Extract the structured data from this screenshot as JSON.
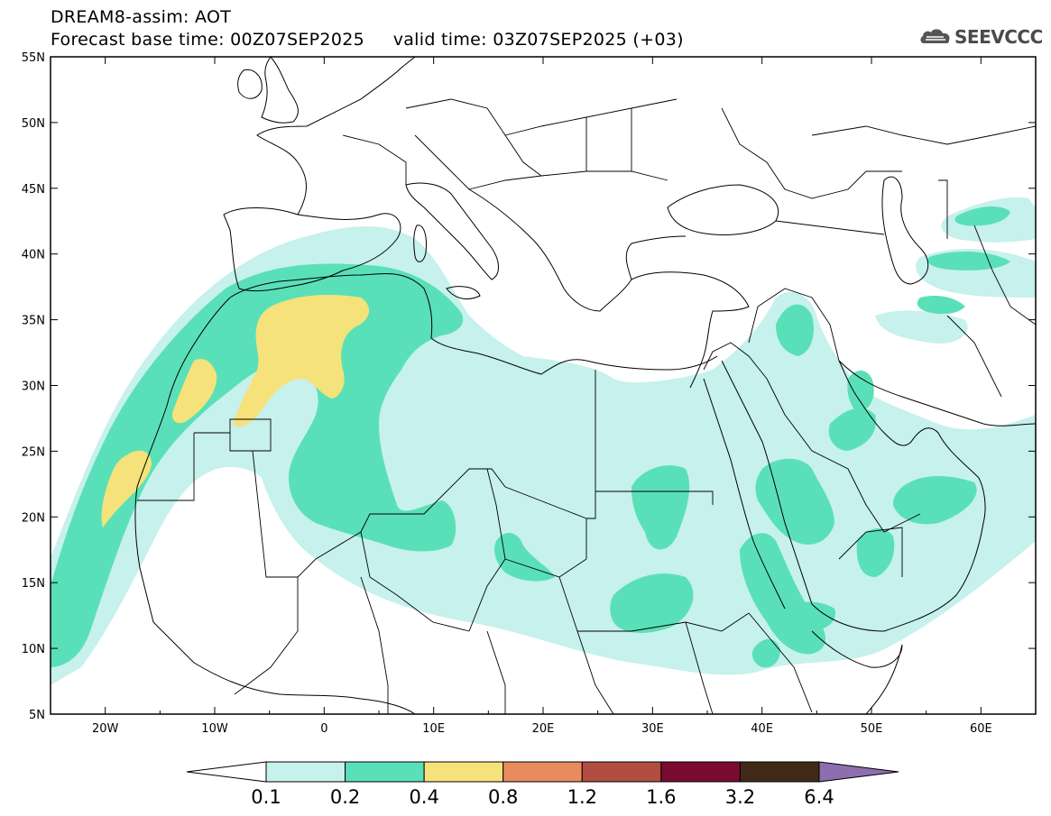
{
  "header": {
    "title": "DREAM8-assim: AOT",
    "base_time_label": "Forecast base time: 00Z07SEP2025",
    "valid_time_label": "valid time: 03Z07SEP2025 (+03)"
  },
  "logo": {
    "text": "SEEVCCC",
    "icon": "cloud-logo-icon"
  },
  "map": {
    "lat_ticks": [
      "55N",
      "50N",
      "45N",
      "40N",
      "35N",
      "30N",
      "25N",
      "20N",
      "15N",
      "10N",
      "5N"
    ],
    "lon_ticks": [
      "20W",
      "10W",
      "0",
      "10E",
      "20E",
      "30E",
      "40E",
      "50E",
      "60E"
    ],
    "extent": {
      "lon": [
        -25,
        65
      ],
      "lat": [
        5,
        55
      ]
    }
  },
  "colorbar": {
    "labels": [
      "0.1",
      "0.2",
      "0.4",
      "0.8",
      "1.2",
      "1.6",
      "3.2",
      "6.4"
    ],
    "colors": [
      "#c6f1ec",
      "#5ae0b8",
      "#f6e27a",
      "#e88b5e",
      "#b24d41",
      "#7a0a2e",
      "#3f2a18"
    ],
    "overflow_color": "#8d6fb0",
    "underflow_color": "#ffffff"
  }
}
